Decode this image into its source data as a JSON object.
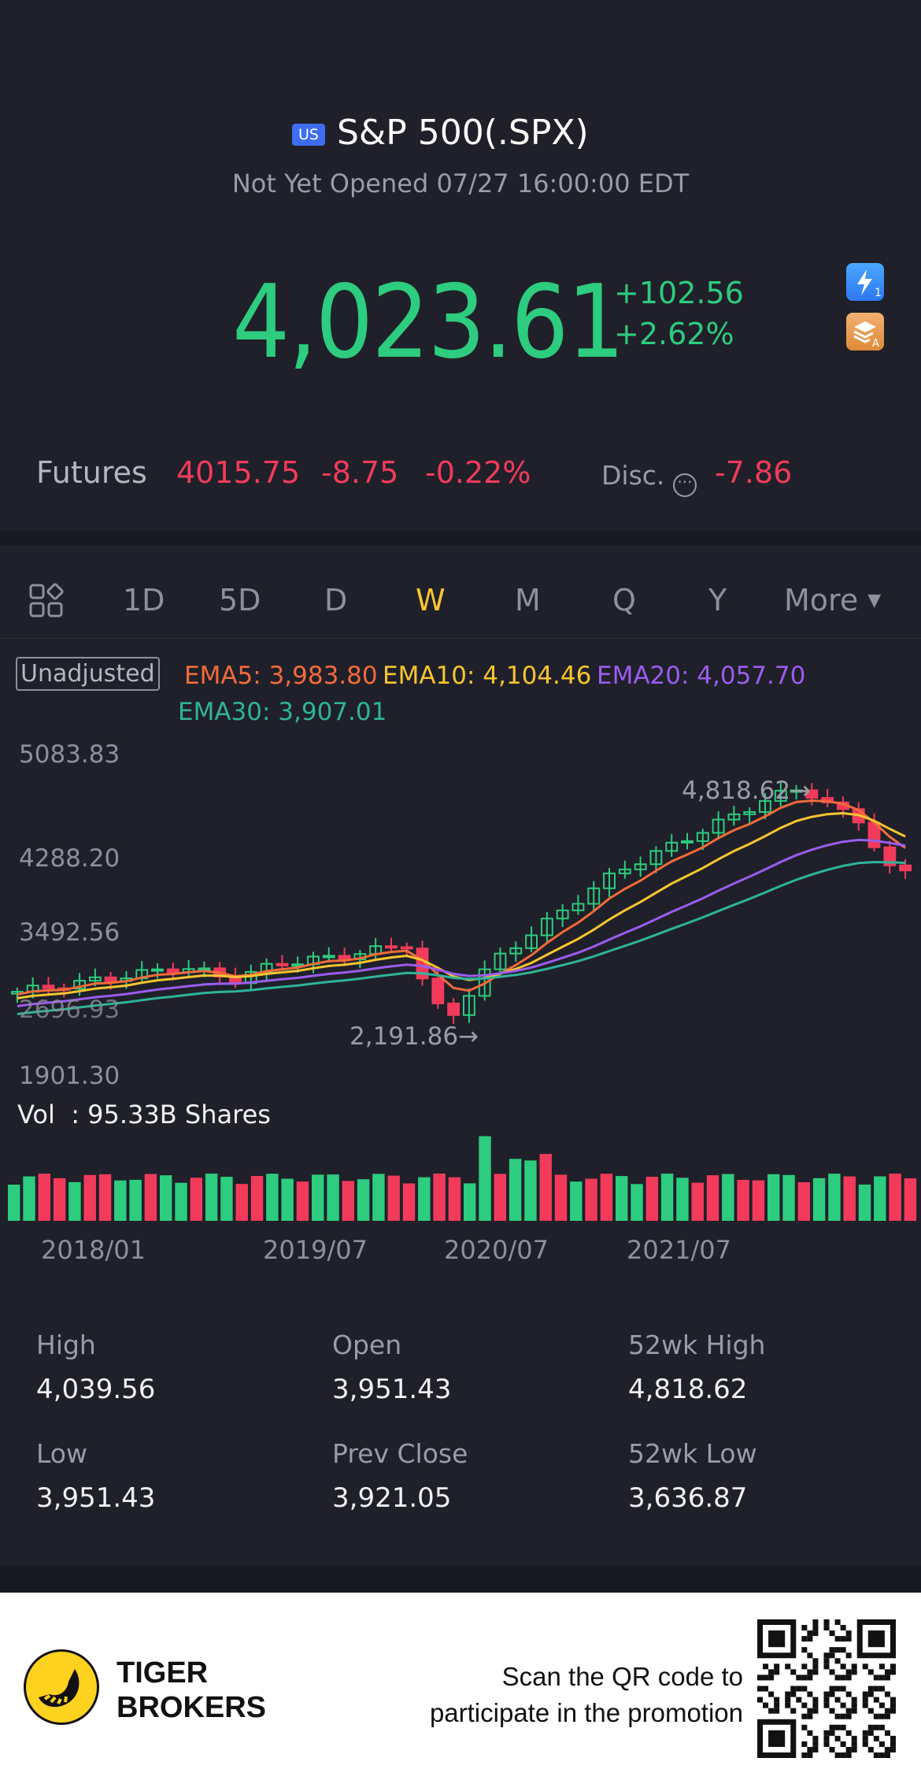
{
  "header": {
    "market_badge": "US",
    "title": "S&P 500(.SPX)",
    "status": "Not Yet Opened 07/27 16:00:00 EDT",
    "price": "4,023.61",
    "change": "+102.56",
    "change_pct": "+2.62%"
  },
  "futures": {
    "label": "Futures",
    "price": "4015.75",
    "change": "-8.75",
    "change_pct": "-0.22%",
    "disc_label": "Disc.",
    "disc_value": "-7.86"
  },
  "tabs": [
    "1D",
    "5D",
    "D",
    "W",
    "M",
    "Q",
    "Y",
    "More"
  ],
  "active_tab": "W",
  "chart": {
    "adjust_label": "Unadjusted",
    "ema5": "EMA5: 3,983.80",
    "ema10": "EMA10: 4,104.46",
    "ema20": "EMA20: 4,057.70",
    "ema30": "EMA30: 3,907.01",
    "y_labels": [
      "5083.83",
      "4288.20",
      "3492.56",
      "2696.93",
      "1901.30"
    ],
    "high_marker": "4,818.62",
    "low_marker": "2,191.86",
    "volume_label": "Vol  : 95.33B Shares",
    "x_labels": [
      "2018/01",
      "2019/07",
      "2020/07",
      "2021/07"
    ],
    "colors": {
      "up": "#2dcc7f",
      "down": "#f23b5a",
      "ema5": "#f26b3a",
      "ema10": "#f7c530",
      "ema20": "#9b5cf0",
      "ema30": "#2fb39a"
    }
  },
  "stats": [
    {
      "label": "High",
      "value": "4,039.56"
    },
    {
      "label": "Open",
      "value": "3,951.43"
    },
    {
      "label": "52wk High",
      "value": "4,818.62"
    },
    {
      "label": "Low",
      "value": "3,951.43"
    },
    {
      "label": "Prev Close",
      "value": "3,921.05"
    },
    {
      "label": "52wk Low",
      "value": "3,636.87"
    }
  ],
  "footer": {
    "brand_line1": "TIGER",
    "brand_line2": "BROKERS",
    "promo_line1": "Scan the QR code to",
    "promo_line2": "participate in the promotion"
  }
}
